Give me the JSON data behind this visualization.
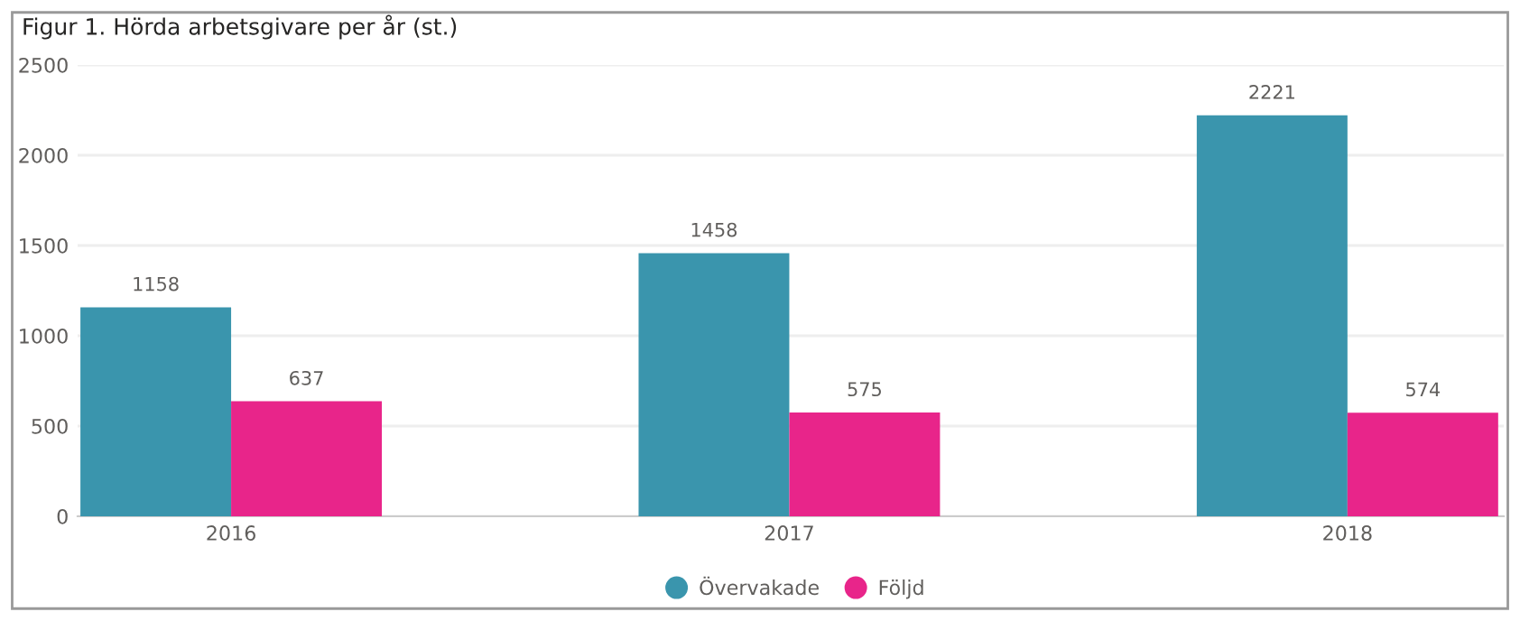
{
  "chart_data": {
    "type": "bar",
    "title": "Figur 1. Hörda arbetsgivare per år (st.)",
    "categories": [
      "2016",
      "2017",
      "2018"
    ],
    "series": [
      {
        "name": "Övervakade",
        "color": "#3a95ad",
        "values": [
          1158,
          1458,
          2221
        ]
      },
      {
        "name": "Följd",
        "color": "#e8258a",
        "values": [
          637,
          575,
          574
        ]
      }
    ],
    "ylim": [
      0,
      2500
    ],
    "yticks": [
      0,
      500,
      1000,
      1500,
      2000,
      2500
    ],
    "grid": "y",
    "legend": "bottom",
    "marker": "circle",
    "data_labels": true
  }
}
